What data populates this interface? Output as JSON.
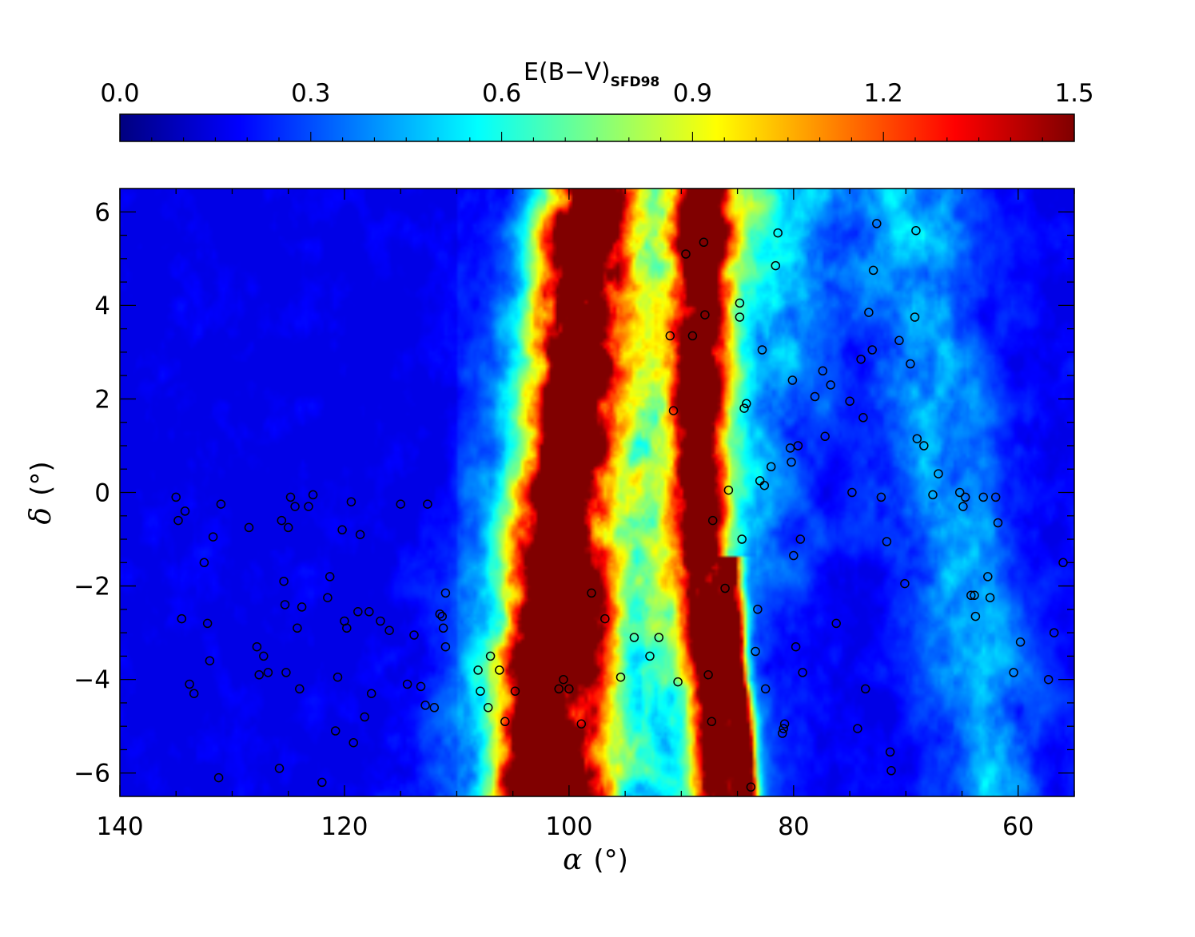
{
  "chart_data": {
    "type": "heatmap",
    "colorbar": {
      "label_main": "E(B−V)",
      "label_sub": "SFD98",
      "range": [
        0.0,
        1.5
      ],
      "tick_labels": [
        "0.0",
        "0.3",
        "0.6",
        "0.9",
        "1.2",
        "1.5"
      ],
      "tick_values": [
        0.0,
        0.3,
        0.6,
        0.9,
        1.2,
        1.5
      ],
      "colormap": "jet"
    },
    "x_axis": {
      "symbol": "α",
      "unit": "(°)",
      "range": [
        140,
        55
      ],
      "reversed": true,
      "tick_values": [
        140,
        120,
        100,
        80,
        60
      ],
      "tick_labels": [
        "140",
        "120",
        "100",
        "80",
        "60"
      ]
    },
    "y_axis": {
      "symbol": "δ",
      "unit": "(°)",
      "range": [
        -6.5,
        6.5
      ],
      "tick_values": [
        -6,
        -4,
        -2,
        0,
        2,
        4,
        6
      ],
      "tick_labels": [
        "−6",
        "−4",
        "−2",
        "0",
        "2",
        "4",
        "6"
      ]
    },
    "extinction_ridges": [
      {
        "name": "main-ridge",
        "points": [
          [
            101.6,
            -6.5
          ],
          [
            102.3,
            -5
          ],
          [
            101.8,
            -3.5
          ],
          [
            101.2,
            -2
          ],
          [
            100.8,
            -0.5
          ],
          [
            100.3,
            1
          ],
          [
            99.8,
            2.5
          ],
          [
            99.2,
            4
          ],
          [
            98.6,
            5.5
          ],
          [
            98.2,
            6.5
          ]
        ],
        "width": 5.5,
        "peak": 1.5
      },
      {
        "name": "east-ridge",
        "points": [
          [
            86.5,
            -6.5
          ],
          [
            86.8,
            -5
          ],
          [
            87.3,
            -3.5
          ],
          [
            87.8,
            -2
          ],
          [
            88.3,
            -0.5
          ],
          [
            88.6,
            1
          ],
          [
            88.6,
            2.5
          ],
          [
            88.3,
            4
          ],
          [
            88.2,
            5.5
          ],
          [
            88.0,
            6.5
          ]
        ],
        "width": 3.2,
        "peak": 1.3
      },
      {
        "name": "arc-ridge",
        "points": [
          [
            96.5,
            5.5
          ],
          [
            95.5,
            4.5
          ],
          [
            94.5,
            4.0
          ],
          [
            93.2,
            3.2
          ],
          [
            92.6,
            2.2
          ]
        ],
        "width": 2.0,
        "peak": 1.0
      },
      {
        "name": "south-knot",
        "points": [
          [
            84.2,
            -6.5
          ],
          [
            84.6,
            -5
          ],
          [
            85.3,
            -3.5
          ],
          [
            85.6,
            -2
          ]
        ],
        "width": 1.3,
        "peak": 1.3
      }
    ],
    "sources": [
      [
        135.0,
        -0.1
      ],
      [
        134.8,
        -0.6
      ],
      [
        134.2,
        -0.4
      ],
      [
        134.5,
        -2.7
      ],
      [
        133.8,
        -4.1
      ],
      [
        133.4,
        -4.3
      ],
      [
        132.5,
        -1.5
      ],
      [
        132.2,
        -2.8
      ],
      [
        132.0,
        -3.6
      ],
      [
        131.7,
        -0.95
      ],
      [
        131.2,
        -6.1
      ],
      [
        131.0,
        -0.25
      ],
      [
        128.5,
        -0.75
      ],
      [
        127.8,
        -3.3
      ],
      [
        127.6,
        -3.9
      ],
      [
        127.2,
        -3.5
      ],
      [
        126.8,
        -3.85
      ],
      [
        125.8,
        -5.9
      ],
      [
        125.6,
        -0.6
      ],
      [
        125.4,
        -1.9
      ],
      [
        125.3,
        -2.4
      ],
      [
        125.2,
        -3.85
      ],
      [
        125.0,
        -0.75
      ],
      [
        124.8,
        -0.1
      ],
      [
        124.4,
        -0.3
      ],
      [
        124.2,
        -2.9
      ],
      [
        124.0,
        -4.2
      ],
      [
        123.8,
        -2.45
      ],
      [
        123.2,
        -0.3
      ],
      [
        122.8,
        -0.05
      ],
      [
        122.0,
        -6.2
      ],
      [
        121.5,
        -2.25
      ],
      [
        121.3,
        -1.8
      ],
      [
        120.8,
        -5.1
      ],
      [
        120.6,
        -3.95
      ],
      [
        120.2,
        -0.8
      ],
      [
        120.0,
        -2.75
      ],
      [
        119.8,
        -2.9
      ],
      [
        119.4,
        -0.2
      ],
      [
        119.2,
        -5.35
      ],
      [
        118.8,
        -2.55
      ],
      [
        118.6,
        -0.9
      ],
      [
        118.2,
        -4.8
      ],
      [
        117.8,
        -2.55
      ],
      [
        117.6,
        -4.3
      ],
      [
        116.8,
        -2.75
      ],
      [
        116.0,
        -2.95
      ],
      [
        115.0,
        -0.25
      ],
      [
        114.4,
        -4.1
      ],
      [
        113.8,
        -3.05
      ],
      [
        113.2,
        -4.15
      ],
      [
        112.8,
        -4.55
      ],
      [
        112.6,
        -0.25
      ],
      [
        112.0,
        -4.6
      ],
      [
        111.5,
        -2.6
      ],
      [
        111.3,
        -2.65
      ],
      [
        111.2,
        -2.9
      ],
      [
        111.0,
        -2.15
      ],
      [
        111.0,
        -3.3
      ],
      [
        108.1,
        -3.8
      ],
      [
        107.9,
        -4.25
      ],
      [
        107.2,
        -4.6
      ],
      [
        107.0,
        -3.5
      ],
      [
        106.2,
        -3.8
      ],
      [
        105.7,
        -4.9
      ],
      [
        104.8,
        -4.25
      ],
      [
        100.9,
        -4.2
      ],
      [
        100.5,
        -4.0
      ],
      [
        100.0,
        -4.2
      ],
      [
        98.9,
        -4.95
      ],
      [
        98.0,
        -2.15
      ],
      [
        96.8,
        -2.7
      ],
      [
        95.4,
        -3.95
      ],
      [
        94.2,
        -3.1
      ],
      [
        92.8,
        -3.5
      ],
      [
        92.0,
        -3.1
      ],
      [
        91.0,
        3.35
      ],
      [
        90.7,
        1.75
      ],
      [
        90.3,
        -4.05
      ],
      [
        89.6,
        5.1
      ],
      [
        89.0,
        3.35
      ],
      [
        88.0,
        5.35
      ],
      [
        87.9,
        3.8
      ],
      [
        87.6,
        -3.9
      ],
      [
        87.3,
        -4.9
      ],
      [
        87.2,
        -0.6
      ],
      [
        86.1,
        -2.05
      ],
      [
        85.8,
        0.05
      ],
      [
        84.8,
        4.05
      ],
      [
        84.8,
        3.75
      ],
      [
        84.6,
        -1.0
      ],
      [
        84.4,
        1.8
      ],
      [
        84.2,
        1.9
      ],
      [
        83.8,
        -6.3
      ],
      [
        83.4,
        -3.4
      ],
      [
        83.2,
        -2.5
      ],
      [
        83.0,
        0.25
      ],
      [
        82.8,
        3.05
      ],
      [
        82.6,
        0.15
      ],
      [
        82.5,
        -4.2
      ],
      [
        82.0,
        0.55
      ],
      [
        81.6,
        4.85
      ],
      [
        81.4,
        5.55
      ],
      [
        81.0,
        -5.15
      ],
      [
        80.9,
        -5.05
      ],
      [
        80.8,
        -4.95
      ],
      [
        80.3,
        0.95
      ],
      [
        80.2,
        0.65
      ],
      [
        80.1,
        2.4
      ],
      [
        80.0,
        -1.35
      ],
      [
        79.8,
        -3.3
      ],
      [
        79.6,
        1.0
      ],
      [
        79.4,
        -1.0
      ],
      [
        79.2,
        -3.85
      ],
      [
        78.1,
        2.05
      ],
      [
        77.4,
        2.6
      ],
      [
        77.2,
        1.2
      ],
      [
        76.7,
        2.3
      ],
      [
        76.2,
        -2.8
      ],
      [
        75.0,
        1.95
      ],
      [
        74.8,
        0.0
      ],
      [
        74.3,
        -5.05
      ],
      [
        74.0,
        2.85
      ],
      [
        73.8,
        1.6
      ],
      [
        73.6,
        -4.2
      ],
      [
        73.3,
        3.85
      ],
      [
        73.0,
        3.05
      ],
      [
        72.9,
        4.75
      ],
      [
        72.6,
        5.75
      ],
      [
        72.2,
        -0.1
      ],
      [
        71.7,
        -1.05
      ],
      [
        71.4,
        -5.55
      ],
      [
        71.3,
        -5.95
      ],
      [
        70.6,
        3.25
      ],
      [
        70.1,
        -1.95
      ],
      [
        69.6,
        2.75
      ],
      [
        69.2,
        3.75
      ],
      [
        69.1,
        5.6
      ],
      [
        69.0,
        1.15
      ],
      [
        68.4,
        1.0
      ],
      [
        67.6,
        -0.05
      ],
      [
        67.1,
        0.4
      ],
      [
        65.2,
        0.0
      ],
      [
        64.9,
        -0.3
      ],
      [
        64.7,
        -0.1
      ],
      [
        64.2,
        -2.2
      ],
      [
        63.9,
        -2.2
      ],
      [
        63.8,
        -2.65
      ],
      [
        63.1,
        -0.1
      ],
      [
        62.7,
        -1.8
      ],
      [
        62.5,
        -2.25
      ],
      [
        62.0,
        -0.1
      ],
      [
        61.8,
        -0.65
      ],
      [
        60.4,
        -3.85
      ],
      [
        59.8,
        -3.2
      ],
      [
        57.3,
        -4.0
      ],
      [
        56.8,
        -3.0
      ],
      [
        56.0,
        -1.5
      ]
    ]
  }
}
